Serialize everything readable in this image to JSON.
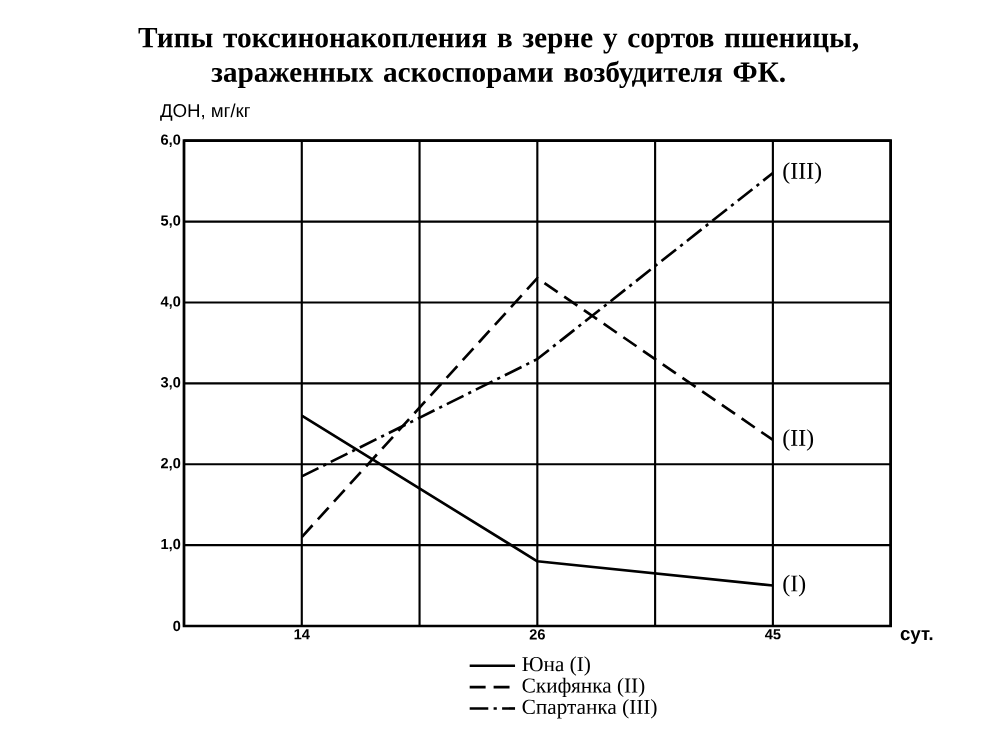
{
  "chart_data": {
    "type": "line",
    "title": "Типы токсинонакопления в зерне у сортов пшеницы,\nзараженных аскоспорами возбудителя ФК.",
    "ylabel": "ДОН, мг/кг",
    "xlabel": "сут.",
    "categories": [
      null,
      "14",
      null,
      "26",
      null,
      "45",
      null
    ],
    "series": [
      {
        "name": "Юна (I)",
        "color": "#000000",
        "line_style": "solid",
        "values": [
          null,
          2.6,
          null,
          0.8,
          null,
          0.5,
          null
        ]
      },
      {
        "name": "Скифянка (II)",
        "color": "#000000",
        "line_style": "dashed",
        "values": [
          null,
          1.1,
          null,
          4.3,
          null,
          2.3,
          null
        ]
      },
      {
        "name": "Спартанка (III)",
        "color": "#000000",
        "line_style": "dashdot",
        "values": [
          null,
          1.85,
          null,
          3.3,
          null,
          5.6,
          null
        ]
      }
    ],
    "ylim": [
      0,
      6
    ],
    "yticks": [
      0,
      {
        "value": 1,
        "label": "1,0"
      },
      {
        "value": 2,
        "label": "2,0"
      },
      {
        "value": 3,
        "label": "3,0"
      },
      {
        "value": 4,
        "label": "4,0"
      },
      {
        "value": 5,
        "label": "5,0"
      },
      {
        "value": 6,
        "label": "6,0"
      }
    ],
    "annotations": [
      {
        "text": "(I)",
        "x": "45",
        "y": 0.5
      },
      {
        "text": "(II)",
        "x": "45",
        "y": 2.3
      },
      {
        "text": "(III)",
        "x": "45",
        "y": 5.6
      }
    ],
    "grid": true,
    "legend": "bottom",
    "marker": "none"
  }
}
